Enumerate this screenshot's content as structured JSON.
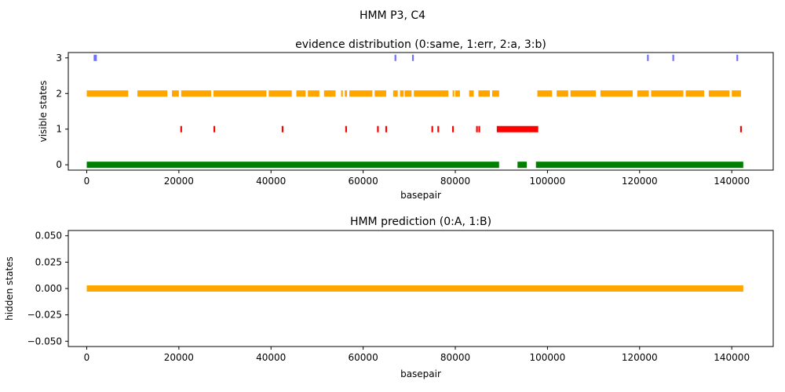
{
  "figure": {
    "suptitle": "HMM P3, C4"
  },
  "chart_data": [
    {
      "type": "scatter",
      "title": "evidence distribution (0:same, 1:err, 2:a, 3:b)",
      "xlabel": "basepair",
      "ylabel": "visible states",
      "xlim": [
        -4000,
        149000
      ],
      "ylim": [
        -0.15,
        3.15
      ],
      "xticks": [
        0,
        20000,
        40000,
        60000,
        80000,
        100000,
        120000,
        140000
      ],
      "yticks": [
        0,
        1,
        2,
        3
      ],
      "grid": false,
      "series": [
        {
          "state": 0,
          "color": "#008000",
          "segments": [
            [
              0,
              89500
            ],
            [
              93500,
              95500
            ],
            [
              97500,
              142500
            ]
          ]
        },
        {
          "state": 1,
          "color": "#ff0000",
          "points": [
            20500,
            27700,
            42500,
            56300,
            63200,
            65000,
            75000,
            76300,
            79500,
            84700,
            85200,
            142000
          ],
          "segments": [
            [
              89000,
              98000
            ]
          ]
        },
        {
          "state": 2,
          "color": "#ffa500",
          "segments": [
            [
              0,
              9000
            ],
            [
              11000,
              17500
            ],
            [
              18500,
              20000
            ],
            [
              20500,
              27000
            ],
            [
              27500,
              39000
            ],
            [
              39500,
              44500
            ],
            [
              45500,
              47500
            ],
            [
              48000,
              50500
            ],
            [
              51500,
              54000
            ],
            [
              56000,
              56500
            ],
            [
              57000,
              62000
            ],
            [
              62500,
              65000
            ],
            [
              66500,
              67500
            ],
            [
              68000,
              68800
            ],
            [
              69000,
              70500
            ],
            [
              71000,
              78500
            ],
            [
              80000,
              81000
            ],
            [
              83000,
              84000
            ],
            [
              85000,
              87500
            ],
            [
              88000,
              89500
            ],
            [
              97800,
              101000
            ],
            [
              102000,
              104500
            ],
            [
              105000,
              110500
            ],
            [
              111500,
              118500
            ],
            [
              119500,
              122000
            ],
            [
              122500,
              129500
            ],
            [
              130000,
              134000
            ],
            [
              135000,
              139500
            ],
            [
              140000,
              142000
            ]
          ],
          "points": [
            52600,
            55400,
            79600,
            86400
          ]
        },
        {
          "state": 3,
          "color": "#7070ff",
          "points": [
            1700,
            2000,
            67000,
            70800,
            121800,
            127300,
            141200
          ]
        }
      ]
    },
    {
      "type": "scatter",
      "title": "HMM prediction (0:A, 1:B)",
      "xlabel": "basepair",
      "ylabel": "hidden states",
      "xlim": [
        -4000,
        149000
      ],
      "ylim": [
        -0.055,
        0.055
      ],
      "xticks": [
        0,
        20000,
        40000,
        60000,
        80000,
        100000,
        120000,
        140000
      ],
      "yticks": [
        -0.05,
        -0.025,
        0.0,
        0.025,
        0.05
      ],
      "ytick_labels": [
        "−0.050",
        "−0.025",
        "0.000",
        "0.025",
        "0.050"
      ],
      "grid": false,
      "series": [
        {
          "state": 0,
          "color": "#ffa500",
          "segments": [
            [
              0,
              142500
            ]
          ]
        }
      ]
    }
  ]
}
